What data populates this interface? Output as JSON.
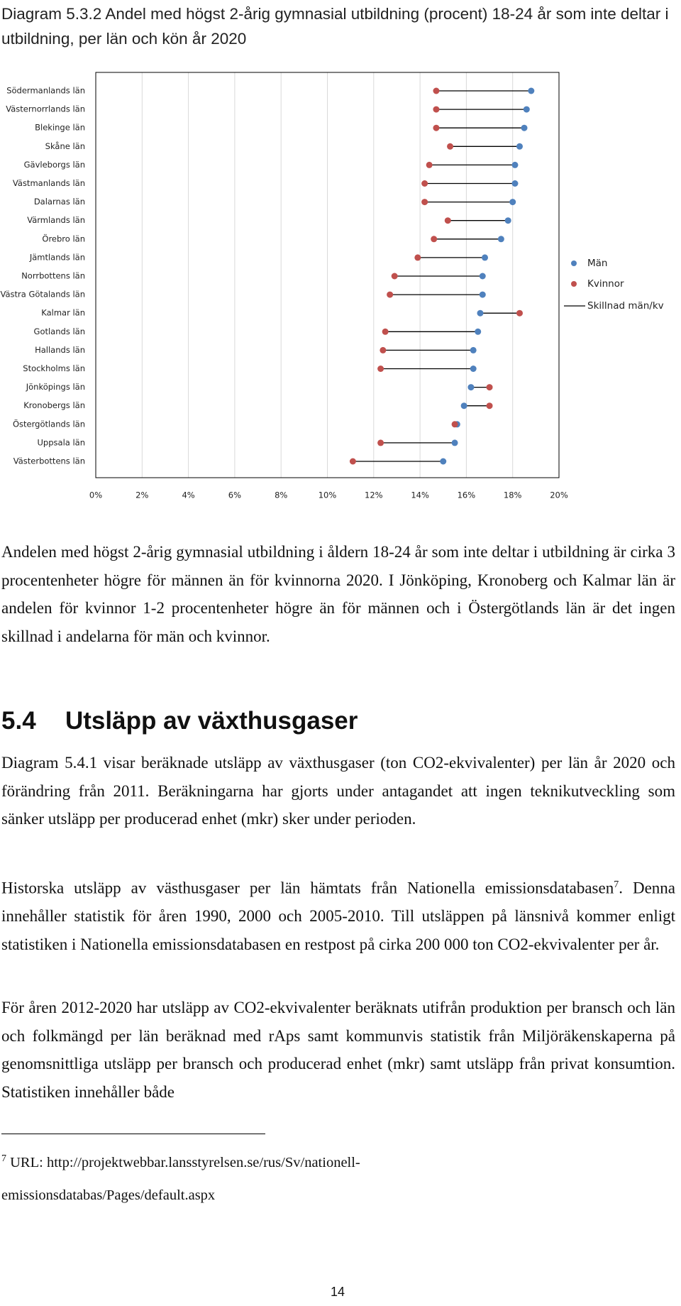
{
  "chart_data": {
    "type": "dumbbell",
    "title": "Diagram 5.3.2 Andel med högst 2-årig gymnasial utbildning (procent) 18-24 år som inte deltar i utbildning, per län och kön år 2020",
    "categories": [
      "Södermanlands län",
      "Västernorrlands län",
      "Blekinge län",
      "Skåne län",
      "Gävleborgs län",
      "Västmanlands län",
      "Dalarnas län",
      "Värmlands län",
      "Örebro län",
      "Jämtlands län",
      "Norrbottens län",
      "Västra Götalands län",
      "Kalmar län",
      "Gotlands län",
      "Hallands län",
      "Stockholms län",
      "Jönköpings län",
      "Kronobergs län",
      "Östergötlands län",
      "Uppsala län",
      "Västerbottens län"
    ],
    "series": [
      {
        "name": "Män",
        "color": "#4f81bd",
        "values": [
          18.8,
          18.6,
          18.5,
          18.3,
          18.1,
          18.1,
          18.0,
          17.8,
          17.5,
          16.8,
          16.7,
          16.7,
          16.6,
          16.5,
          16.3,
          16.3,
          16.2,
          15.9,
          15.6,
          15.5,
          15.0
        ]
      },
      {
        "name": "Kvinnor",
        "color": "#c0504d",
        "values": [
          14.7,
          14.7,
          14.7,
          15.3,
          14.4,
          14.2,
          14.2,
          15.2,
          14.6,
          13.9,
          12.9,
          12.7,
          18.3,
          12.5,
          12.4,
          12.3,
          17.0,
          17.0,
          15.5,
          12.3,
          11.1
        ]
      }
    ],
    "connector": {
      "name": "Skillnad män/kv",
      "color": "#000000"
    },
    "xlim": [
      0,
      20
    ],
    "xticks": [
      {
        "value": 0,
        "label": "0%"
      },
      {
        "value": 2,
        "label": "2%"
      },
      {
        "value": 4,
        "label": "4%"
      },
      {
        "value": 6,
        "label": "6%"
      },
      {
        "value": 8,
        "label": "8%"
      },
      {
        "value": 10,
        "label": "10%"
      },
      {
        "value": 12,
        "label": "12%"
      },
      {
        "value": 14,
        "label": "14%"
      },
      {
        "value": 16,
        "label": "16%"
      },
      {
        "value": 18,
        "label": "18%"
      },
      {
        "value": 20,
        "label": "20%"
      }
    ],
    "grid": true,
    "legend": "right"
  },
  "document": {
    "paragraph_1": "Andelen med högst 2-årig gymnasial utbildning i åldern 18-24 år som inte deltar i utbildning är cirka 3 procentenheter högre för männen än för kvinnorna 2020. I Jönköping, Kronoberg och Kalmar län är andelen för kvinnor 1-2 procentenheter högre än för männen och i Östergötlands län är det ingen skillnad i andelarna för män och kvinnor.",
    "heading": {
      "number": "5.4",
      "title": "Utsläpp av växthusgaser"
    },
    "paragraph_2": "Diagram 5.4.1 visar beräknade utsläpp av växthusgaser (ton CO2-ekvivalenter) per län år 2020 och förändring från 2011. Beräkningarna har gjorts under antagandet att ingen teknikutveckling som sänker utsläpp per producerad enhet (mkr) sker under perioden.",
    "paragraph_3": {
      "before": "Historska utsläpp av västhusgaser per län hämtats från Nationella emissionsdatabasen",
      "footnote_ref": "7",
      "after": ". Denna innehåller statistik för åren 1990, 2000 och 2005-2010. Till utsläppen på länsnivå kommer enligt statistiken i Nationella emissionsdatabasen en restpost på cirka 200 000 ton CO2-ekvivalenter per år."
    },
    "paragraph_4": "För åren 2012-2020 har utsläpp av CO2-ekvivalenter beräknats utifrån produktion per bransch och län och folkmängd per län beräknad med rAps samt kommunvis statistik från Miljöräkenskaperna på genomsnittliga utsläpp per bransch och producerad enhet (mkr) samt utsläpp från privat konsumtion. Statistiken innehåller både",
    "footnote": {
      "number": "7",
      "text": "URL: http://projektwebbar.lansstyrelsen.se/rus/Sv/nationell-emissionsdatabas/Pages/default.aspx"
    },
    "page_number": "14"
  }
}
